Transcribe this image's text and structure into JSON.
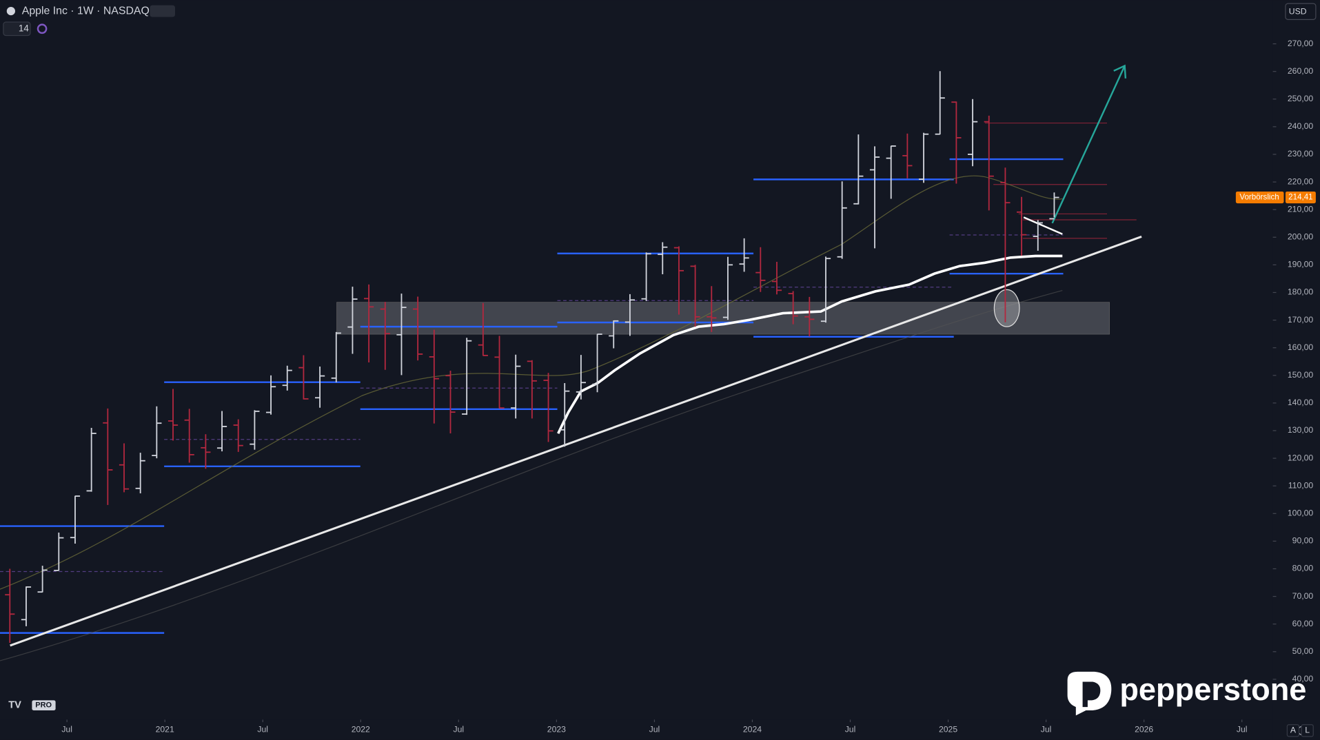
{
  "chart_data": {
    "type": "ohlc",
    "title": "Apple Inc · 1W · NASDAQ",
    "indicator": "14",
    "currency": "USD",
    "watermark": "pepperstone",
    "scale_buttons": [
      "A",
      "L"
    ],
    "up_color": "#d1d4dc",
    "down_color": "#b2283f",
    "x": [
      "2020-03",
      "2020-04",
      "2020-05",
      "2020-06",
      "2020-07",
      "2020-08",
      "2020-09",
      "2020-10",
      "2020-11",
      "2020-12",
      "2021-01",
      "2021-02",
      "2021-03",
      "2021-04",
      "2021-05",
      "2021-06",
      "2021-07",
      "2021-08",
      "2021-09",
      "2021-10",
      "2021-11",
      "2021-12",
      "2022-01",
      "2022-02",
      "2022-03",
      "2022-04",
      "2022-05",
      "2022-06",
      "2022-07",
      "2022-08",
      "2022-09",
      "2022-10",
      "2022-11",
      "2022-12",
      "2023-01",
      "2023-02",
      "2023-03",
      "2023-04",
      "2023-05",
      "2023-06",
      "2023-07",
      "2023-08",
      "2023-09",
      "2023-10",
      "2023-11",
      "2023-12",
      "2024-01",
      "2024-02",
      "2024-03",
      "2024-04",
      "2024-05",
      "2024-06",
      "2024-07",
      "2024-08",
      "2024-09",
      "2024-10",
      "2024-11",
      "2024-12",
      "2025-01",
      "2025-02",
      "2025-03",
      "2025-04",
      "2025-05",
      "2025-06",
      "2025-07"
    ],
    "open": [
      70.6,
      61.6,
      71.6,
      79.4,
      91.3,
      108.2,
      132.8,
      117.6,
      109.1,
      121.0,
      133.5,
      133.8,
      123.8,
      123.7,
      132.0,
      125.1,
      136.6,
      146.4,
      152.8,
      141.9,
      149.0,
      167.5,
      177.8,
      174.0,
      164.7,
      174.0,
      156.7,
      149.9,
      136.0,
      161.0,
      156.6,
      138.2,
      155.1,
      148.2,
      130.3,
      144.0,
      146.8,
      164.3,
      169.3,
      177.7,
      193.8,
      196.2,
      189.5,
      171.2,
      171.0,
      190.3,
      187.2,
      184.0,
      179.6,
      171.2,
      169.6,
      192.9,
      212.1,
      224.4,
      228.6,
      229.5,
      221.0,
      237.3,
      248.9,
      230.0,
      241.8,
      219.8,
      209.1,
      200.3,
      206.7
    ],
    "high": [
      80.0,
      73.6,
      81.1,
      93.1,
      106.4,
      131.0,
      138.0,
      125.4,
      122.0,
      138.8,
      145.1,
      137.9,
      128.7,
      137.1,
      134.1,
      137.4,
      150.0,
      153.5,
      157.3,
      153.2,
      165.7,
      182.1,
      182.9,
      176.6,
      179.6,
      178.5,
      166.5,
      151.7,
      163.6,
      176.2,
      164.3,
      157.5,
      155.5,
      150.9,
      147.2,
      157.4,
      165.0,
      169.9,
      179.4,
      194.5,
      198.2,
      196.7,
      190.0,
      182.3,
      192.9,
      199.6,
      196.4,
      191.1,
      180.5,
      178.4,
      193.0,
      220.2,
      237.2,
      232.9,
      233.1,
      237.5,
      237.8,
      260.1,
      249.1,
      250.0,
      244.0,
      225.2,
      214.6,
      206.2,
      216.2
    ],
    "low": [
      53.2,
      59.2,
      71.5,
      79.3,
      89.1,
      107.9,
      103.1,
      107.7,
      107.3,
      120.0,
      126.4,
      118.4,
      116.2,
      122.5,
      122.3,
      123.1,
      135.8,
      144.5,
      141.3,
      138.3,
      147.5,
      157.8,
      154.7,
      152.0,
      150.1,
      155.4,
      132.6,
      129.0,
      135.7,
      157.1,
      138.0,
      134.4,
      134.4,
      125.9,
      124.2,
      141.3,
      143.9,
      159.8,
      164.3,
      176.9,
      186.6,
      172.0,
      167.6,
      165.7,
      170.1,
      187.5,
      180.2,
      179.3,
      168.5,
      164.1,
      169.1,
      192.2,
      211.9,
      196.0,
      213.9,
      221.3,
      219.7,
      237.2,
      219.4,
      225.7,
      209.7,
      169.2,
      193.3,
      195.1,
      207.2
    ],
    "close": [
      63.6,
      73.4,
      79.5,
      91.2,
      106.3,
      129.0,
      115.8,
      108.9,
      119.1,
      132.7,
      132.0,
      121.3,
      122.2,
      131.5,
      124.6,
      137.0,
      145.9,
      151.8,
      141.5,
      149.8,
      165.3,
      177.6,
      174.8,
      165.1,
      174.6,
      157.7,
      148.8,
      136.7,
      162.5,
      157.2,
      138.2,
      153.3,
      148.0,
      129.9,
      144.3,
      147.4,
      164.9,
      169.7,
      177.3,
      194.0,
      196.4,
      187.9,
      171.2,
      170.8,
      190.0,
      192.5,
      184.4,
      180.8,
      171.5,
      170.3,
      192.3,
      210.6,
      222.1,
      229.0,
      233.0,
      225.9,
      237.3,
      250.4,
      236.0,
      241.8,
      222.1,
      212.5,
      200.9,
      205.2,
      214.4
    ],
    "ylim": [
      25.4,
      285.8
    ],
    "yticks": [
      {
        "value": 270,
        "label": "270,00"
      },
      {
        "value": 260,
        "label": "260,00"
      },
      {
        "value": 250,
        "label": "250,00"
      },
      {
        "value": 240,
        "label": "240,00"
      },
      {
        "value": 230,
        "label": "230,00"
      },
      {
        "value": 220,
        "label": "220,00"
      },
      {
        "value": 210,
        "label": "210,00"
      },
      {
        "value": 200,
        "label": "200,00"
      },
      {
        "value": 190,
        "label": "190,00"
      },
      {
        "value": 180,
        "label": "180,00"
      },
      {
        "value": 170,
        "label": "170,00"
      },
      {
        "value": 160,
        "label": "160,00"
      },
      {
        "value": 150,
        "label": "150,00"
      },
      {
        "value": 140,
        "label": "140,00"
      },
      {
        "value": 130,
        "label": "130,00"
      },
      {
        "value": 120,
        "label": "120,00"
      },
      {
        "value": 110,
        "label": "110,00"
      },
      {
        "value": 100,
        "label": "100,00"
      },
      {
        "value": 90,
        "label": "90,00"
      },
      {
        "value": 80,
        "label": "80,00"
      },
      {
        "value": 70,
        "label": "70,00"
      },
      {
        "value": 60,
        "label": "60,00"
      },
      {
        "value": 50,
        "label": "50,00"
      },
      {
        "value": 40,
        "label": "40,00"
      }
    ],
    "xlim": [
      "2020-03",
      "2026-09"
    ],
    "xticks": [
      {
        "value": "2020-07",
        "label": "Jul"
      },
      {
        "value": "2021-01",
        "label": "2021"
      },
      {
        "value": "2021-07",
        "label": "Jul"
      },
      {
        "value": "2022-01",
        "label": "2022"
      },
      {
        "value": "2022-07",
        "label": "Jul"
      },
      {
        "value": "2023-01",
        "label": "2023"
      },
      {
        "value": "2023-07",
        "label": "Jul"
      },
      {
        "value": "2024-01",
        "label": "2024"
      },
      {
        "value": "2024-07",
        "label": "Jul"
      },
      {
        "value": "2025-01",
        "label": "2025"
      },
      {
        "value": "2025-07",
        "label": "Jul"
      },
      {
        "value": "2026-01",
        "label": "2026"
      },
      {
        "value": "2026-07",
        "label": "Jul"
      }
    ],
    "price_tag": {
      "name": "Vorbörslich",
      "value": 214.41,
      "label": "214,41",
      "color": "#f57c00"
    }
  }
}
